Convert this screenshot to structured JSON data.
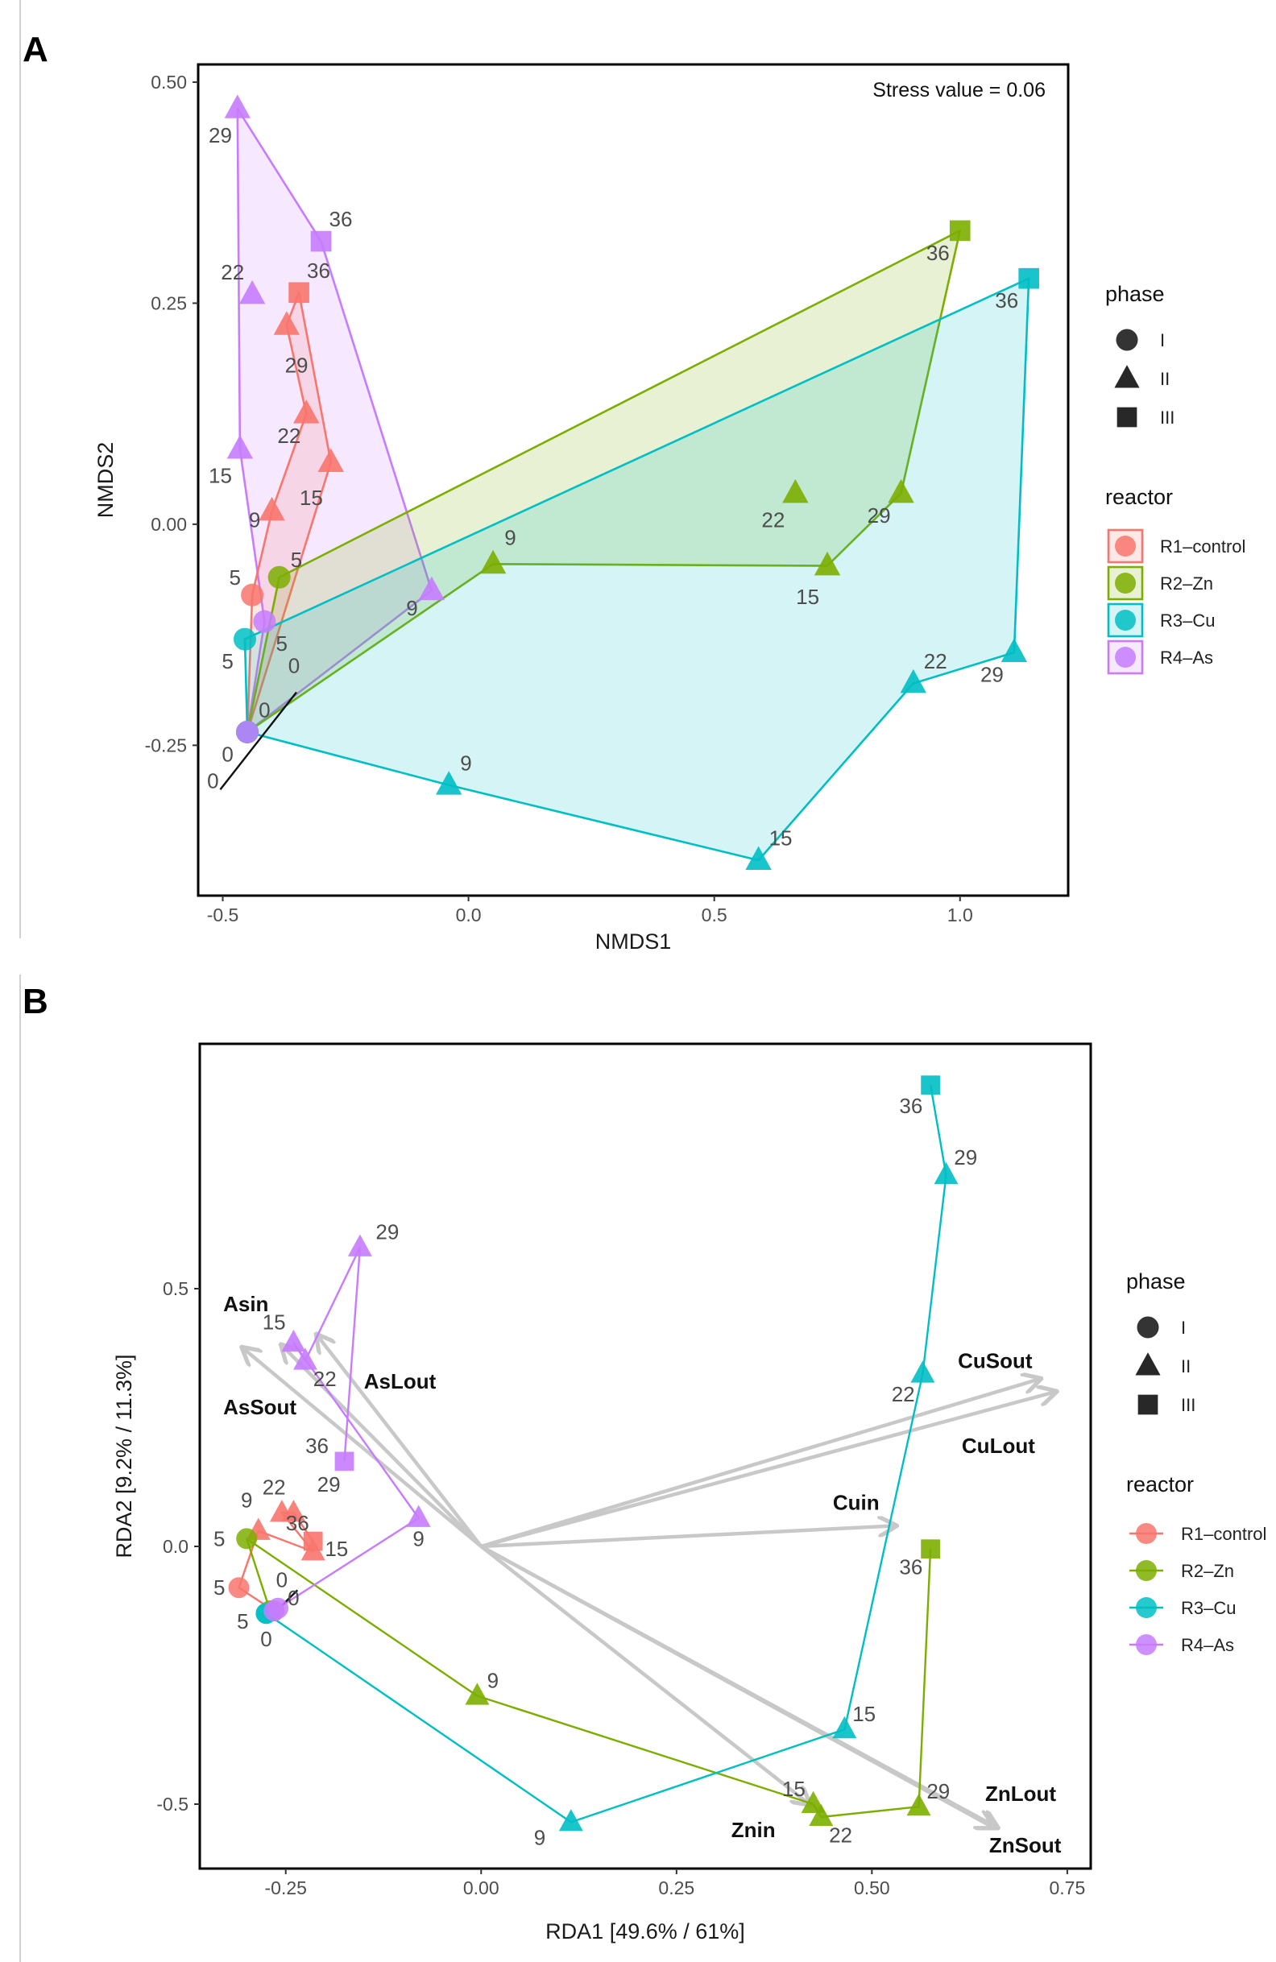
{
  "figure": {
    "panel_a_letter": "A",
    "panel_b_letter": "B"
  },
  "colors": {
    "R1": "#F8766D",
    "R2": "#7CAE00",
    "R3": "#00BFC4",
    "R4": "#C77CFF",
    "env_arrow": "#c8c8c8"
  },
  "legend": {
    "phase_title": "phase",
    "phase_items": [
      {
        "shape": "circle",
        "label": "I"
      },
      {
        "shape": "triangle",
        "label": "II"
      },
      {
        "shape": "square",
        "label": "III"
      }
    ],
    "reactor_title": "reactor",
    "reactor_items": [
      {
        "key": "R1",
        "label": "R1–control"
      },
      {
        "key": "R2",
        "label": "R2–Zn"
      },
      {
        "key": "R3",
        "label": "R3–Cu"
      },
      {
        "key": "R4",
        "label": "R4–As"
      }
    ]
  },
  "chart_data": [
    {
      "type": "scatter",
      "panel": "A",
      "title": "",
      "annotation": "Stress value = 0.06",
      "xlabel": "NMDS1",
      "ylabel": "NMDS2",
      "xlim": [
        -0.55,
        1.22
      ],
      "ylim": [
        -0.42,
        0.52
      ],
      "xticks": [
        -0.5,
        0.0,
        0.5,
        1.0
      ],
      "xtick_labels": [
        "-0.5",
        "0.0",
        "0.5",
        "1.0"
      ],
      "yticks": [
        -0.25,
        0.0,
        0.25,
        0.5
      ],
      "ytick_labels": [
        "-0.25",
        "0.00",
        "0.25",
        "0.50"
      ],
      "series": [
        {
          "reactor": "R1",
          "name": "R1–control",
          "points": [
            {
              "day": "0",
              "phase": "I",
              "x": -0.45,
              "y": -0.235,
              "label_dx": -0.07,
              "label_dy": -0.055
            },
            {
              "day": "5",
              "phase": "I",
              "x": -0.44,
              "y": -0.08,
              "label_dx": -0.035,
              "label_dy": 0.02
            },
            {
              "day": "9",
              "phase": "II",
              "x": -0.4,
              "y": 0.015,
              "label_dx": -0.035,
              "label_dy": -0.01
            },
            {
              "day": "15",
              "phase": "II",
              "x": -0.28,
              "y": 0.07,
              "label_dx": -0.04,
              "label_dy": -0.04
            },
            {
              "day": "22",
              "phase": "II",
              "x": -0.33,
              "y": 0.125,
              "label_dx": -0.035,
              "label_dy": -0.025
            },
            {
              "day": "29",
              "phase": "II",
              "x": -0.37,
              "y": 0.225,
              "label_dx": 0.02,
              "label_dy": -0.045
            },
            {
              "day": "36",
              "phase": "III",
              "x": -0.345,
              "y": 0.262,
              "label_dx": 0.04,
              "label_dy": 0.025
            }
          ]
        },
        {
          "reactor": "R2",
          "name": "R2–Zn",
          "points": [
            {
              "day": "0",
              "phase": "I",
              "x": -0.45,
              "y": -0.235,
              "label_dx": 0.035,
              "label_dy": 0.025
            },
            {
              "day": "5",
              "phase": "I",
              "x": -0.385,
              "y": -0.06,
              "label_dx": 0.035,
              "label_dy": 0.02
            },
            {
              "day": "9",
              "phase": "II",
              "x": 0.05,
              "y": -0.045,
              "label_dx": 0.035,
              "label_dy": 0.03
            },
            {
              "day": "15",
              "phase": "II",
              "x": 0.73,
              "y": -0.047,
              "label_dx": -0.04,
              "label_dy": -0.035
            },
            {
              "day": "22",
              "phase": "II",
              "x": 0.665,
              "y": 0.035,
              "label_dx": -0.045,
              "label_dy": -0.03
            },
            {
              "day": "29",
              "phase": "II",
              "x": 0.88,
              "y": 0.035,
              "label_dx": -0.045,
              "label_dy": -0.025
            },
            {
              "day": "36",
              "phase": "III",
              "x": 1.0,
              "y": 0.332,
              "label_dx": -0.045,
              "label_dy": -0.025
            }
          ]
        },
        {
          "reactor": "R3",
          "name": "R3–Cu",
          "points": [
            {
              "day": "0",
              "phase": "I",
              "x": -0.45,
              "y": -0.235,
              "label_dx": -0.04,
              "label_dy": -0.025
            },
            {
              "day": "5",
              "phase": "I",
              "x": -0.455,
              "y": -0.13,
              "label_dx": -0.035,
              "label_dy": -0.025
            },
            {
              "day": "9",
              "phase": "II",
              "x": -0.04,
              "y": -0.295,
              "label_dx": 0.035,
              "label_dy": 0.025
            },
            {
              "day": "15",
              "phase": "II",
              "x": 0.59,
              "y": -0.38,
              "label_dx": 0.045,
              "label_dy": 0.025
            },
            {
              "day": "22",
              "phase": "II",
              "x": 0.905,
              "y": -0.18,
              "label_dx": 0.045,
              "label_dy": 0.025
            },
            {
              "day": "29",
              "phase": "II",
              "x": 1.11,
              "y": -0.145,
              "label_dx": -0.045,
              "label_dy": -0.025
            },
            {
              "day": "36",
              "phase": "III",
              "x": 1.14,
              "y": 0.278,
              "label_dx": -0.045,
              "label_dy": -0.025
            }
          ]
        },
        {
          "reactor": "R4",
          "name": "R4–As",
          "points": [
            {
              "day": "0",
              "phase": "I",
              "x": -0.45,
              "y": -0.235,
              "label_dx": 0.095,
              "label_dy": 0.075
            },
            {
              "day": "5",
              "phase": "I",
              "x": -0.415,
              "y": -0.11,
              "label_dx": 0.035,
              "label_dy": -0.025
            },
            {
              "day": "9",
              "phase": "II",
              "x": -0.075,
              "y": -0.075,
              "label_dx": -0.04,
              "label_dy": -0.02
            },
            {
              "day": "15",
              "phase": "II",
              "x": -0.465,
              "y": 0.085,
              "label_dx": -0.04,
              "label_dy": -0.03
            },
            {
              "day": "22",
              "phase": "II",
              "x": -0.44,
              "y": 0.26,
              "label_dx": -0.04,
              "label_dy": 0.025
            },
            {
              "day": "29",
              "phase": "II",
              "x": -0.47,
              "y": 0.47,
              "label_dx": -0.035,
              "label_dy": -0.03
            },
            {
              "day": "36",
              "phase": "III",
              "x": -0.3,
              "y": 0.32,
              "label_dx": 0.04,
              "label_dy": 0.025
            }
          ]
        }
      ],
      "hulls": [
        {
          "reactor": "R4",
          "days": [
            "0",
            "5",
            "15",
            "29",
            "36",
            "9"
          ]
        },
        {
          "reactor": "R1",
          "days": [
            "0",
            "5",
            "9",
            "22",
            "29",
            "36",
            "15"
          ]
        },
        {
          "reactor": "R2",
          "days": [
            "0",
            "5",
            "36",
            "29",
            "15",
            "9"
          ]
        },
        {
          "reactor": "R3",
          "days": [
            "0",
            "5",
            "36",
            "29",
            "22",
            "15",
            "9"
          ]
        }
      ],
      "origin_segment": {
        "x0": -0.505,
        "y0": -0.3,
        "x1": -0.35,
        "y1": -0.19
      }
    },
    {
      "type": "scatter",
      "panel": "B",
      "title": "",
      "xlabel": "RDA1 [49.6% / 61%]",
      "ylabel": "RDA2 [9.2% / 11.3%]",
      "xlim": [
        -0.36,
        0.78
      ],
      "ylim": [
        -0.625,
        0.975
      ],
      "xticks": [
        -0.25,
        0.0,
        0.25,
        0.5,
        0.75
      ],
      "xtick_labels": [
        "-0.25",
        "0.00",
        "0.25",
        "0.50",
        "0.75"
      ],
      "yticks": [
        -0.5,
        0.0,
        0.5
      ],
      "ytick_labels": [
        "-0.5",
        "0.0",
        "0.5"
      ],
      "series": [
        {
          "reactor": "R1",
          "name": "R1–control",
          "points": [
            {
              "day": "0",
              "phase": "I",
              "x": -0.265,
              "y": -0.125,
              "label_dx": 0.0,
              "label_dy": 0.0
            },
            {
              "day": "5",
              "phase": "I",
              "x": -0.31,
              "y": -0.08,
              "label_dx": -0.025,
              "label_dy": 0.0
            },
            {
              "day": "9",
              "phase": "II",
              "x": -0.285,
              "y": 0.03,
              "label_dx": -0.015,
              "label_dy": 0.06
            },
            {
              "day": "15",
              "phase": "II",
              "x": -0.215,
              "y": -0.01,
              "label_dx": 0.03,
              "label_dy": 0.005
            },
            {
              "day": "22",
              "phase": "II",
              "x": -0.255,
              "y": 0.065,
              "label_dx": -0.01,
              "label_dy": 0.05
            },
            {
              "day": "29",
              "phase": "II",
              "x": -0.24,
              "y": 0.065,
              "label_dx": 0.045,
              "label_dy": 0.055
            },
            {
              "day": "36",
              "phase": "III",
              "x": -0.215,
              "y": 0.01,
              "label_dx": -0.02,
              "label_dy": 0.035
            }
          ]
        },
        {
          "reactor": "R2",
          "name": "R2–Zn",
          "points": [
            {
              "day": "0",
              "phase": "I",
              "x": -0.27,
              "y": -0.125,
              "label_dx": 0.015,
              "label_dy": 0.06
            },
            {
              "day": "5",
              "phase": "I",
              "x": -0.3,
              "y": 0.015,
              "label_dx": -0.035,
              "label_dy": 0.0
            },
            {
              "day": "9",
              "phase": "II",
              "x": -0.005,
              "y": -0.29,
              "label_dx": 0.02,
              "label_dy": 0.03
            },
            {
              "day": "15",
              "phase": "II",
              "x": 0.425,
              "y": -0.5,
              "label_dx": -0.025,
              "label_dy": 0.03
            },
            {
              "day": "22",
              "phase": "II",
              "x": 0.435,
              "y": -0.525,
              "label_dx": 0.025,
              "label_dy": -0.035
            },
            {
              "day": "29",
              "phase": "II",
              "x": 0.56,
              "y": -0.505,
              "label_dx": 0.025,
              "label_dy": 0.03
            },
            {
              "day": "36",
              "phase": "III",
              "x": 0.575,
              "y": -0.005,
              "label_dx": -0.025,
              "label_dy": -0.035
            }
          ]
        },
        {
          "reactor": "R3",
          "name": "R3–Cu",
          "points": [
            {
              "day": "0",
              "phase": "I",
              "x": -0.275,
              "y": -0.13,
              "label_dx": 0.0,
              "label_dy": -0.05
            },
            {
              "day": "5",
              "phase": "I",
              "x": -0.275,
              "y": -0.13,
              "label_dx": -0.03,
              "label_dy": -0.015
            },
            {
              "day": "9",
              "phase": "II",
              "x": 0.115,
              "y": -0.535,
              "label_dx": -0.04,
              "label_dy": -0.03
            },
            {
              "day": "15",
              "phase": "II",
              "x": 0.465,
              "y": -0.355,
              "label_dx": 0.025,
              "label_dy": 0.03
            },
            {
              "day": "22",
              "phase": "II",
              "x": 0.565,
              "y": 0.335,
              "label_dx": -0.025,
              "label_dy": -0.04
            },
            {
              "day": "29",
              "phase": "II",
              "x": 0.595,
              "y": 0.72,
              "label_dx": 0.025,
              "label_dy": 0.035
            },
            {
              "day": "36",
              "phase": "III",
              "x": 0.575,
              "y": 0.895,
              "label_dx": -0.025,
              "label_dy": -0.04
            }
          ]
        },
        {
          "reactor": "R4",
          "name": "R4–As",
          "points": [
            {
              "day": "0",
              "phase": "I",
              "x": -0.265,
              "y": -0.125,
              "label_dx": 0.025,
              "label_dy": 0.025
            },
            {
              "day": "5",
              "phase": "I",
              "x": -0.26,
              "y": -0.12,
              "label_dx": 0.0,
              "label_dy": 0.0
            },
            {
              "day": "9",
              "phase": "II",
              "x": -0.08,
              "y": 0.055,
              "label_dx": 0.0,
              "label_dy": -0.04
            },
            {
              "day": "15",
              "phase": "II",
              "x": -0.24,
              "y": 0.395,
              "label_dx": -0.025,
              "label_dy": 0.04
            },
            {
              "day": "22",
              "phase": "II",
              "x": -0.225,
              "y": 0.36,
              "label_dx": 0.025,
              "label_dy": -0.035
            },
            {
              "day": "29",
              "phase": "II",
              "x": -0.155,
              "y": 0.58,
              "label_dx": 0.035,
              "label_dy": 0.03
            },
            {
              "day": "36",
              "phase": "III",
              "x": -0.175,
              "y": 0.165,
              "label_dx": -0.035,
              "label_dy": 0.03
            }
          ]
        }
      ],
      "paths": [
        {
          "reactor": "R1",
          "days": [
            "0",
            "5",
            "9",
            "15",
            "22",
            "29",
            "36"
          ]
        },
        {
          "reactor": "R2",
          "days": [
            "0",
            "5",
            "9",
            "15",
            "22",
            "29",
            "36"
          ]
        },
        {
          "reactor": "R3",
          "days": [
            "0",
            "5",
            "9",
            "15",
            "22",
            "29",
            "36"
          ]
        },
        {
          "reactor": "R4",
          "days": [
            "0",
            "5",
            "9",
            "15",
            "22",
            "29",
            "36"
          ]
        }
      ],
      "origin_segment": {
        "x0": -0.262,
        "y0": -0.125,
        "x1": -0.235,
        "y1": -0.085
      },
      "env_vectors": [
        {
          "name": "Asin",
          "x": -0.305,
          "y": 0.385,
          "label_x": -0.33,
          "label_y": 0.47
        },
        {
          "name": "AsSout",
          "x": -0.255,
          "y": 0.39,
          "label_x": -0.33,
          "label_y": 0.27
        },
        {
          "name": "AsLout",
          "x": -0.21,
          "y": 0.41,
          "label_x": -0.15,
          "label_y": 0.32
        },
        {
          "name": "CuSout",
          "x": 0.715,
          "y": 0.325,
          "label_x": 0.61,
          "label_y": 0.36
        },
        {
          "name": "CuLout",
          "x": 0.735,
          "y": 0.3,
          "label_x": 0.615,
          "label_y": 0.195
        },
        {
          "name": "Cuin",
          "x": 0.53,
          "y": 0.04,
          "label_x": 0.45,
          "label_y": 0.085
        },
        {
          "name": "Znin",
          "x": 0.42,
          "y": -0.5,
          "label_x": 0.32,
          "label_y": -0.55
        },
        {
          "name": "ZnLout",
          "x": 0.66,
          "y": -0.545,
          "label_x": 0.645,
          "label_y": -0.48
        },
        {
          "name": "ZnSout",
          "x": 0.655,
          "y": -0.545,
          "label_x": 0.65,
          "label_y": -0.58
        }
      ]
    }
  ]
}
